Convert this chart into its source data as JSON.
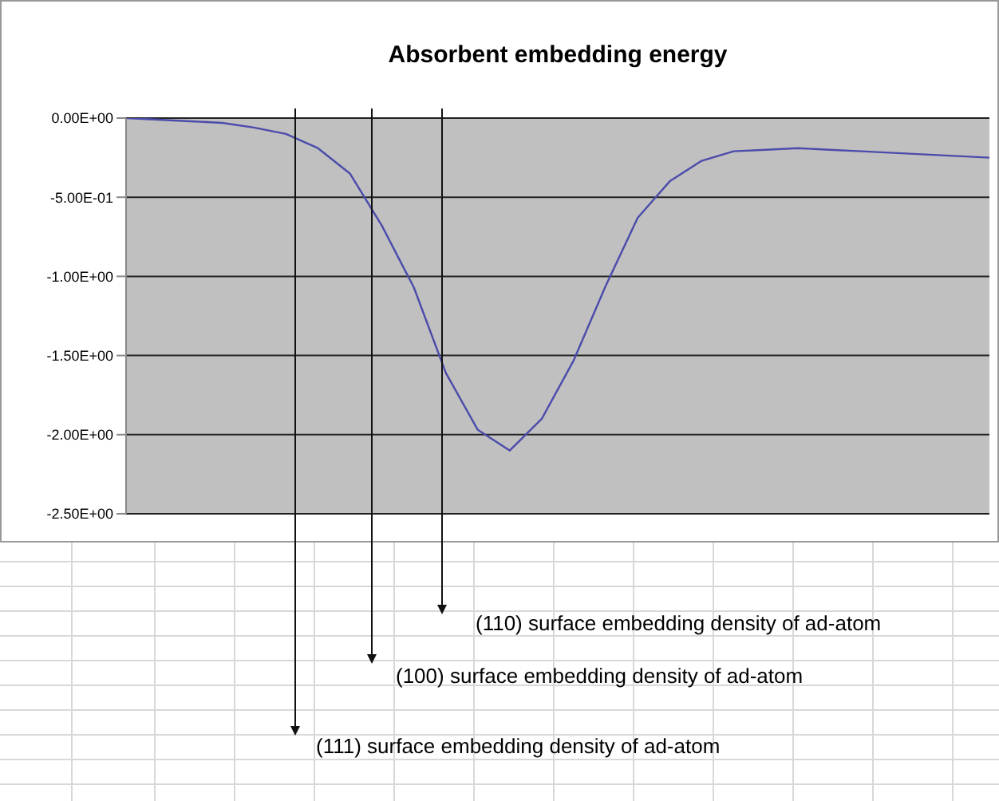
{
  "chart_data": {
    "type": "line",
    "title": "Absorbent embedding energy",
    "categories": [
      null,
      null,
      null,
      null,
      null,
      null,
      null,
      null,
      null,
      null,
      null,
      null,
      null,
      null,
      null,
      null,
      null,
      null,
      null,
      null,
      null,
      null,
      null,
      null,
      null,
      null,
      null,
      null
    ],
    "series": [
      {
        "color": "#4b4bab",
        "values": [
          0,
          -0.01,
          -0.02,
          -0.03,
          -0.06,
          -0.1,
          -0.19,
          -0.35,
          -0.68,
          -1.07,
          -1.61,
          -1.97,
          -2.1,
          -1.9,
          -1.53,
          -1.06,
          -0.63,
          -0.4,
          -0.27,
          -0.21,
          -0.2,
          -0.19,
          -0.2,
          -0.21,
          -0.22,
          -0.23,
          -0.24,
          -0.25
        ]
      }
    ],
    "ylim": [
      -2.5,
      0
    ],
    "yticks": [
      {
        "value": 0,
        "label": "0.00E+00"
      },
      {
        "value": -0.5,
        "label": "-5.00E-01"
      },
      {
        "value": -1,
        "label": "-1.00E+00"
      },
      {
        "value": -1.5,
        "label": "-1.50E+00"
      },
      {
        "value": -2,
        "label": "-2.00E+00"
      },
      {
        "value": -2.5,
        "label": "-2.50E+00"
      }
    ],
    "tick_labels": "y",
    "grid": "y",
    "marker": "none",
    "line_style": "solid",
    "annotations": [
      "(110) surface embedding density of ad-atom",
      "(100) surface embedding density of ad-atom",
      "(111) surface embedding density of ad-atom"
    ]
  }
}
